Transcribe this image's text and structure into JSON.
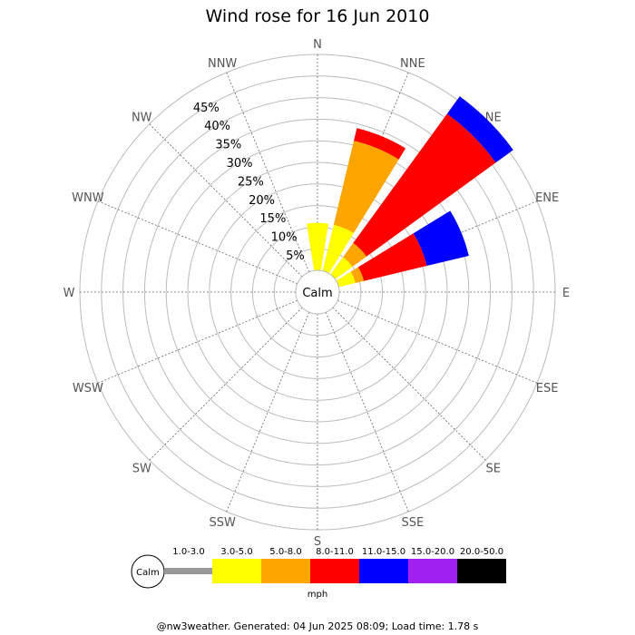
{
  "chart_data": {
    "type": "wind-rose",
    "title": "Wind rose for 16 Jun 2010",
    "directions": [
      "N",
      "NNE",
      "NE",
      "ENE",
      "E",
      "ESE",
      "SE",
      "SSE",
      "S",
      "SSW",
      "SW",
      "WSW",
      "W",
      "WNW",
      "NW",
      "NNW"
    ],
    "radial_ticks": [
      5,
      10,
      15,
      20,
      25,
      30,
      35,
      40,
      45
    ],
    "radial_tick_labels": [
      "5%",
      "10%",
      "15%",
      "20%",
      "25%",
      "30%",
      "35%",
      "40%",
      "45%"
    ],
    "r_max": 50,
    "calm_label": "Calm",
    "speed_bins": [
      {
        "label": "1.0-3.0",
        "color": "#999999"
      },
      {
        "label": "3.0-5.0",
        "color": "#ffff00"
      },
      {
        "label": "5.0-8.0",
        "color": "#ffa500"
      },
      {
        "label": "8.0-11.0",
        "color": "#ff0000"
      },
      {
        "label": "11.0-15.0",
        "color": "#0000ff"
      },
      {
        "label": "15.0-20.0",
        "color": "#a020f0"
      },
      {
        "label": "20.0-50.0",
        "color": "#000000"
      }
    ],
    "unit": "mph",
    "series": [
      {
        "direction": "N",
        "segments": [
          0,
          11,
          0,
          0,
          0,
          0,
          0
        ]
      },
      {
        "direction": "NNE",
        "segments": [
          0,
          11,
          20,
          3,
          0,
          0,
          0
        ]
      },
      {
        "direction": "NE",
        "segments": [
          0,
          5,
          4,
          37,
          5,
          0,
          0
        ]
      },
      {
        "direction": "ENE",
        "segments": [
          0,
          4,
          2,
          15,
          10,
          0,
          0
        ]
      }
    ]
  },
  "footer": "@nw3weather. Generated: 04 Jun 2025 08:09; Load time: 1.78 s"
}
